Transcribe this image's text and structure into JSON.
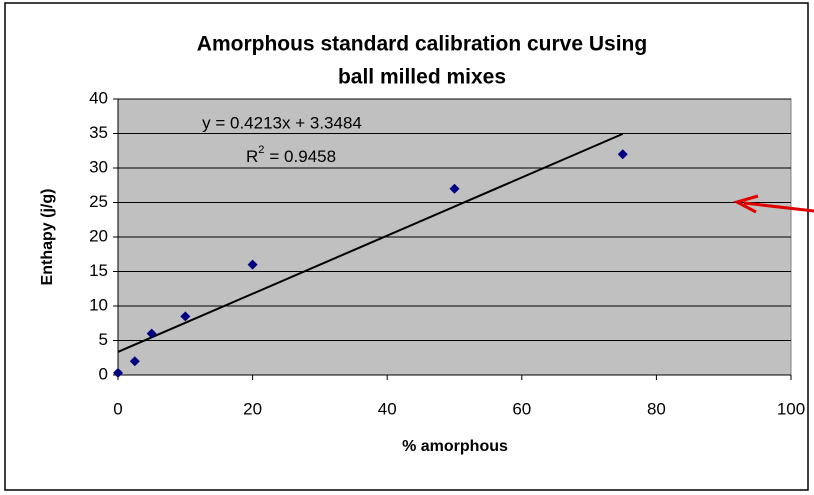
{
  "chart_data": {
    "type": "scatter",
    "title": [
      "Amorphous standard calibration curve Using",
      "ball milled mixes"
    ],
    "x_label": "% amorphous",
    "y_label": "Enthapy (j/g)",
    "x": [
      0,
      2.5,
      5,
      10,
      20,
      50,
      75
    ],
    "values": [
      0.3,
      2,
      6,
      8.5,
      16,
      27,
      32
    ],
    "color": "#000080",
    "xlim": [
      0,
      100
    ],
    "xticks": [
      0,
      20,
      40,
      60,
      80,
      100
    ],
    "ylim": [
      0,
      40
    ],
    "yticks": [
      0,
      5,
      10,
      15,
      20,
      25,
      30,
      35,
      40
    ],
    "grid": true,
    "trendline": {
      "slope": 0.4213,
      "intercept": 3.3484,
      "equation": "y = 0.4213x + 3.3484",
      "r2_symbol": "R",
      "r2_exponent": "2",
      "r2_text": "= 0.9458"
    }
  }
}
